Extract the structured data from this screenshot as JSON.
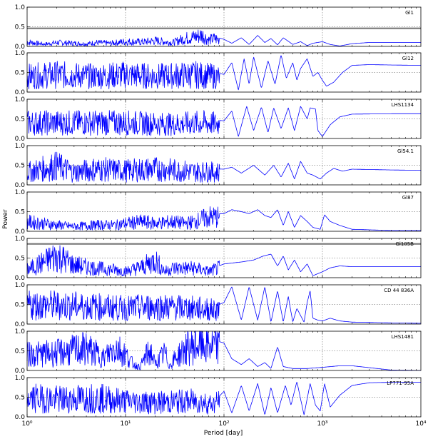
{
  "chart_data": {
    "type": "line",
    "layout": "stacked-panels",
    "title": "",
    "xlabel": "Period [day]",
    "ylabel": "Power",
    "xscale": "log",
    "xlim": [
      1,
      10000
    ],
    "ylim": [
      0,
      1
    ],
    "x_ticks": [
      {
        "label": "10⁰"
      },
      {
        "label": "10¹"
      },
      {
        "label": "10²"
      },
      {
        "label": "10³"
      },
      {
        "label": "10⁴"
      }
    ],
    "y_tick_labels": [
      "0.0",
      "0.5",
      "1.0"
    ],
    "grid": true,
    "colors": {
      "line": "#0000ff",
      "fap_line": "#777777",
      "grid": "#888888"
    },
    "panels": [
      {
        "name": "Gl1",
        "fap_level": 0.46,
        "points": [
          [
            1,
            0.14
          ],
          [
            1.5,
            0.07
          ],
          [
            2,
            0.12
          ],
          [
            3,
            0.1
          ],
          [
            4,
            0.08
          ],
          [
            5,
            0.12
          ],
          [
            7,
            0.1
          ],
          [
            10,
            0.15
          ],
          [
            15,
            0.14
          ],
          [
            20,
            0.18
          ],
          [
            30,
            0.12
          ],
          [
            40,
            0.25
          ],
          [
            50,
            0.3
          ],
          [
            60,
            0.36
          ],
          [
            70,
            0.2
          ],
          [
            80,
            0.25
          ],
          [
            100,
            0.18
          ],
          [
            120,
            0.08
          ],
          [
            150,
            0.22
          ],
          [
            180,
            0.05
          ],
          [
            220,
            0.28
          ],
          [
            260,
            0.1
          ],
          [
            300,
            0.2
          ],
          [
            350,
            0.04
          ],
          [
            400,
            0.22
          ],
          [
            500,
            0.05
          ],
          [
            600,
            0.12
          ],
          [
            700,
            0.02
          ],
          [
            800,
            0.08
          ],
          [
            1000,
            0.12
          ],
          [
            1200,
            0.05
          ],
          [
            1500,
            0.01
          ],
          [
            2000,
            0.07
          ],
          [
            3000,
            0.1
          ],
          [
            5000,
            0.1
          ],
          [
            10000,
            0.1
          ]
        ]
      },
      {
        "name": "Gl12",
        "points": [
          [
            1,
            0.5
          ],
          [
            2,
            0.55
          ],
          [
            5,
            0.5
          ],
          [
            10,
            0.55
          ],
          [
            20,
            0.5
          ],
          [
            50,
            0.55
          ],
          [
            80,
            0.5
          ],
          [
            100,
            0.45
          ],
          [
            120,
            0.75
          ],
          [
            140,
            0.05
          ],
          [
            160,
            0.85
          ],
          [
            180,
            0.2
          ],
          [
            200,
            0.9
          ],
          [
            240,
            0.1
          ],
          [
            280,
            0.8
          ],
          [
            330,
            0.2
          ],
          [
            380,
            0.95
          ],
          [
            430,
            0.35
          ],
          [
            500,
            0.75
          ],
          [
            550,
            0.3
          ],
          [
            600,
            0.6
          ],
          [
            700,
            0.85
          ],
          [
            800,
            0.4
          ],
          [
            900,
            0.5
          ],
          [
            1000,
            0.3
          ],
          [
            1100,
            0.15
          ],
          [
            1300,
            0.25
          ],
          [
            1600,
            0.5
          ],
          [
            2000,
            0.68
          ],
          [
            3000,
            0.7
          ],
          [
            5000,
            0.69
          ],
          [
            10000,
            0.68
          ]
        ]
      },
      {
        "name": "LHS1134",
        "points": [
          [
            1,
            0.5
          ],
          [
            3,
            0.5
          ],
          [
            10,
            0.5
          ],
          [
            30,
            0.45
          ],
          [
            60,
            0.5
          ],
          [
            100,
            0.45
          ],
          [
            120,
            0.7
          ],
          [
            140,
            0.05
          ],
          [
            170,
            0.82
          ],
          [
            200,
            0.2
          ],
          [
            240,
            0.8
          ],
          [
            280,
            0.15
          ],
          [
            320,
            0.78
          ],
          [
            380,
            0.25
          ],
          [
            450,
            0.78
          ],
          [
            520,
            0.2
          ],
          [
            600,
            0.82
          ],
          [
            700,
            0.5
          ],
          [
            750,
            0.78
          ],
          [
            850,
            0.75
          ],
          [
            900,
            0.2
          ],
          [
            1000,
            0.05
          ],
          [
            1200,
            0.35
          ],
          [
            1500,
            0.55
          ],
          [
            2000,
            0.62
          ],
          [
            5000,
            0.63
          ],
          [
            10000,
            0.63
          ]
        ]
      },
      {
        "name": "Gl54.1",
        "points": [
          [
            1,
            0.4
          ],
          [
            2,
            0.6
          ],
          [
            3,
            0.4
          ],
          [
            5,
            0.5
          ],
          [
            10,
            0.45
          ],
          [
            20,
            0.5
          ],
          [
            50,
            0.42
          ],
          [
            100,
            0.4
          ],
          [
            120,
            0.45
          ],
          [
            150,
            0.3
          ],
          [
            200,
            0.5
          ],
          [
            260,
            0.25
          ],
          [
            320,
            0.5
          ],
          [
            380,
            0.2
          ],
          [
            450,
            0.55
          ],
          [
            520,
            0.15
          ],
          [
            600,
            0.6
          ],
          [
            700,
            0.3
          ],
          [
            800,
            0.25
          ],
          [
            950,
            0.15
          ],
          [
            1100,
            0.3
          ],
          [
            1300,
            0.42
          ],
          [
            1600,
            0.35
          ],
          [
            2000,
            0.4
          ],
          [
            5000,
            0.38
          ],
          [
            10000,
            0.37
          ]
        ]
      },
      {
        "name": "Gl87",
        "points": [
          [
            1,
            0.3
          ],
          [
            2,
            0.2
          ],
          [
            3,
            0.15
          ],
          [
            5,
            0.2
          ],
          [
            8,
            0.2
          ],
          [
            10,
            0.25
          ],
          [
            15,
            0.3
          ],
          [
            20,
            0.25
          ],
          [
            30,
            0.3
          ],
          [
            40,
            0.25
          ],
          [
            50,
            0.3
          ],
          [
            70,
            0.45
          ],
          [
            100,
            0.45
          ],
          [
            120,
            0.55
          ],
          [
            150,
            0.5
          ],
          [
            180,
            0.45
          ],
          [
            220,
            0.55
          ],
          [
            260,
            0.4
          ],
          [
            300,
            0.35
          ],
          [
            350,
            0.55
          ],
          [
            400,
            0.15
          ],
          [
            450,
            0.5
          ],
          [
            520,
            0.1
          ],
          [
            600,
            0.4
          ],
          [
            700,
            0.25
          ],
          [
            800,
            0.1
          ],
          [
            950,
            0.05
          ],
          [
            1050,
            0.42
          ],
          [
            1200,
            0.25
          ],
          [
            1500,
            0.15
          ],
          [
            2000,
            0.05
          ],
          [
            5000,
            0.02
          ],
          [
            10000,
            0.02
          ]
        ]
      },
      {
        "name": "Gl105B",
        "fap_level": 0.86,
        "points": [
          [
            1,
            0.25
          ],
          [
            1.5,
            0.5
          ],
          [
            2,
            0.7
          ],
          [
            3,
            0.4
          ],
          [
            5,
            0.3
          ],
          [
            8,
            0.25
          ],
          [
            10,
            0.2
          ],
          [
            15,
            0.35
          ],
          [
            20,
            0.55
          ],
          [
            25,
            0.2
          ],
          [
            30,
            0.3
          ],
          [
            50,
            0.3
          ],
          [
            70,
            0.2
          ],
          [
            100,
            0.35
          ],
          [
            150,
            0.4
          ],
          [
            200,
            0.45
          ],
          [
            250,
            0.55
          ],
          [
            300,
            0.6
          ],
          [
            350,
            0.3
          ],
          [
            400,
            0.55
          ],
          [
            450,
            0.2
          ],
          [
            520,
            0.45
          ],
          [
            600,
            0.15
          ],
          [
            700,
            0.35
          ],
          [
            800,
            0.05
          ],
          [
            1000,
            0.15
          ],
          [
            1200,
            0.25
          ],
          [
            1500,
            0.3
          ],
          [
            2000,
            0.28
          ],
          [
            5000,
            0.28
          ],
          [
            10000,
            0.28
          ]
        ]
      },
      {
        "name": "CD 44 836A",
        "points": [
          [
            1,
            0.6
          ],
          [
            2,
            0.6
          ],
          [
            5,
            0.55
          ],
          [
            10,
            0.5
          ],
          [
            20,
            0.55
          ],
          [
            50,
            0.5
          ],
          [
            80,
            0.45
          ],
          [
            100,
            0.55
          ],
          [
            120,
            0.95
          ],
          [
            150,
            0.1
          ],
          [
            180,
            0.95
          ],
          [
            220,
            0.1
          ],
          [
            260,
            0.95
          ],
          [
            300,
            0.05
          ],
          [
            350,
            0.85
          ],
          [
            400,
            0.05
          ],
          [
            450,
            0.7
          ],
          [
            500,
            0.05
          ],
          [
            550,
            0.4
          ],
          [
            650,
            0.05
          ],
          [
            700,
            0.55
          ],
          [
            750,
            0.85
          ],
          [
            800,
            0.15
          ],
          [
            900,
            0.1
          ],
          [
            1000,
            0.08
          ],
          [
            1200,
            0.15
          ],
          [
            1500,
            0.08
          ],
          [
            2000,
            0.05
          ],
          [
            5000,
            0.03
          ],
          [
            10000,
            0.02
          ]
        ]
      },
      {
        "name": "LHS1481",
        "points": [
          [
            1,
            0.5
          ],
          [
            2,
            0.55
          ],
          [
            4,
            0.7
          ],
          [
            6,
            0.4
          ],
          [
            8,
            0.75
          ],
          [
            10,
            0.5
          ],
          [
            12,
            0.2
          ],
          [
            14,
            0.1
          ],
          [
            16,
            0.45
          ],
          [
            18,
            0.6
          ],
          [
            20,
            0.2
          ],
          [
            25,
            0.55
          ],
          [
            28,
            0.15
          ],
          [
            32,
            0.4
          ],
          [
            40,
            0.65
          ],
          [
            50,
            0.8
          ],
          [
            60,
            0.85
          ],
          [
            70,
            0.8
          ],
          [
            85,
            0.75
          ],
          [
            100,
            0.7
          ],
          [
            120,
            0.3
          ],
          [
            150,
            0.15
          ],
          [
            180,
            0.3
          ],
          [
            220,
            0.1
          ],
          [
            260,
            0.2
          ],
          [
            300,
            0.05
          ],
          [
            350,
            0.6
          ],
          [
            400,
            0.1
          ],
          [
            500,
            0.05
          ],
          [
            700,
            0.05
          ],
          [
            1000,
            0.08
          ],
          [
            1500,
            0.12
          ],
          [
            2000,
            0.12
          ],
          [
            5000,
            0.01
          ],
          [
            10000,
            0.0
          ]
        ]
      },
      {
        "name": "LP771-95A",
        "points": [
          [
            1,
            0.6
          ],
          [
            2,
            0.55
          ],
          [
            5,
            0.6
          ],
          [
            10,
            0.5
          ],
          [
            20,
            0.45
          ],
          [
            50,
            0.5
          ],
          [
            80,
            0.4
          ],
          [
            100,
            0.65
          ],
          [
            120,
            0.1
          ],
          [
            150,
            0.8
          ],
          [
            180,
            0.15
          ],
          [
            220,
            0.85
          ],
          [
            260,
            0.05
          ],
          [
            300,
            0.75
          ],
          [
            350,
            0.1
          ],
          [
            420,
            0.8
          ],
          [
            480,
            0.3
          ],
          [
            550,
            0.9
          ],
          [
            650,
            0.05
          ],
          [
            750,
            0.85
          ],
          [
            850,
            0.3
          ],
          [
            950,
            0.15
          ],
          [
            1050,
            0.85
          ],
          [
            1200,
            0.25
          ],
          [
            1500,
            0.55
          ],
          [
            2000,
            0.8
          ],
          [
            3000,
            0.87
          ],
          [
            5000,
            0.88
          ],
          [
            10000,
            0.88
          ]
        ]
      }
    ]
  }
}
